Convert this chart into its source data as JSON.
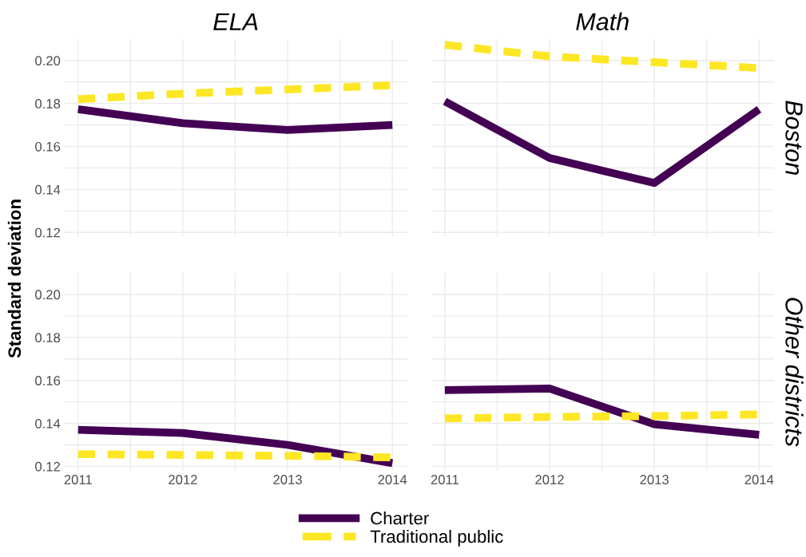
{
  "chart_data": [
    {
      "type": "line",
      "title": "ELA",
      "ylabel": "Standard deviation",
      "x": [
        2011,
        2012,
        2013,
        2014
      ],
      "xlim": [
        2010.87,
        2014.14
      ],
      "ylim": [
        0.118,
        0.21
      ],
      "xticks": [
        2011,
        {
          "value": 2011.5,
          "label": null
        },
        2012,
        {
          "value": 2012.5,
          "label": null
        },
        2013,
        {
          "value": 2013.5,
          "label": null
        },
        2014
      ],
      "yticks": [
        0.12,
        {
          "value": 0.13,
          "label": null
        },
        0.14,
        {
          "value": 0.15,
          "label": null
        },
        0.16,
        {
          "value": 0.17,
          "label": null
        },
        0.18,
        {
          "value": 0.19,
          "label": null
        },
        {
          "value": 0.2,
          "label": "0.20"
        }
      ],
      "grid": true,
      "tick_labels": "y",
      "legend": "bottom",
      "marker": "none",
      "series": [
        {
          "name": "Charter",
          "color": "#440154",
          "line_style": "solid",
          "values": [
            0.1773,
            0.1708,
            0.1677,
            0.17
          ]
        },
        {
          "name": "Traditional public",
          "color": "#fde725",
          "line_style": "dashed",
          "values": [
            0.182,
            0.1846,
            0.1865,
            0.1885
          ]
        }
      ]
    },
    {
      "type": "line",
      "title": "Math",
      "y2label": "Boston",
      "x": [
        2011,
        2012,
        2013,
        2014
      ],
      "xlim": [
        2010.87,
        2014.14
      ],
      "ylim": [
        0.118,
        0.21
      ],
      "xticks": [
        2011,
        {
          "value": 2011.5,
          "label": null
        },
        2012,
        {
          "value": 2012.5,
          "label": null
        },
        2013,
        {
          "value": 2013.5,
          "label": null
        },
        2014
      ],
      "yticks": [
        0.12,
        {
          "value": 0.13,
          "label": null
        },
        0.14,
        {
          "value": 0.15,
          "label": null
        },
        0.16,
        {
          "value": 0.17,
          "label": null
        },
        0.18,
        {
          "value": 0.19,
          "label": null
        },
        0.2
      ],
      "grid": true,
      "tick_labels": false,
      "marker": "none",
      "series": [
        {
          "color": "#440154",
          "line_style": "solid",
          "values": [
            0.181,
            0.1546,
            0.143,
            0.1773
          ]
        },
        {
          "color": "#fde725",
          "line_style": "dashed",
          "values": [
            0.2073,
            0.2019,
            0.1992,
            0.1965
          ]
        }
      ]
    },
    {
      "type": "line",
      "x": [
        2011,
        2012,
        2013,
        2014
      ],
      "xlim": [
        2010.87,
        2014.14
      ],
      "ylim": [
        0.118,
        0.21
      ],
      "xticks": [
        2011,
        {
          "value": 2011.5,
          "label": null
        },
        2012,
        {
          "value": 2012.5,
          "label": null
        },
        2013,
        {
          "value": 2013.5,
          "label": null
        },
        2014
      ],
      "yticks": [
        0.12,
        {
          "value": 0.13,
          "label": null
        },
        0.14,
        {
          "value": 0.15,
          "label": null
        },
        0.16,
        {
          "value": 0.17,
          "label": null
        },
        0.18,
        {
          "value": 0.19,
          "label": null
        },
        {
          "value": 0.2,
          "label": "0.20"
        }
      ],
      "grid": true,
      "marker": "none",
      "series": [
        {
          "color": "#440154",
          "line_style": "solid",
          "values": [
            0.137,
            0.1355,
            0.13,
            0.1215
          ]
        },
        {
          "color": "#fde725",
          "line_style": "dashed",
          "values": [
            0.1257,
            0.1253,
            0.1249,
            0.1242
          ]
        }
      ]
    },
    {
      "type": "line",
      "y2label": "Other districts",
      "x": [
        2011,
        2012,
        2013,
        2014
      ],
      "xlim": [
        2010.87,
        2014.14
      ],
      "ylim": [
        0.118,
        0.21
      ],
      "xticks": [
        2011,
        {
          "value": 2011.5,
          "label": null
        },
        2012,
        {
          "value": 2012.5,
          "label": null
        },
        2013,
        {
          "value": 2013.5,
          "label": null
        },
        2014
      ],
      "yticks": [
        0.12,
        {
          "value": 0.13,
          "label": null
        },
        0.14,
        {
          "value": 0.15,
          "label": null
        },
        0.16,
        {
          "value": 0.17,
          "label": null
        },
        0.18,
        {
          "value": 0.19,
          "label": null
        },
        0.2
      ],
      "grid": true,
      "tick_labels": "x",
      "marker": "none",
      "series": [
        {
          "color": "#440154",
          "line_style": "solid",
          "values": [
            0.1555,
            0.1562,
            0.1396,
            0.1347
          ]
        },
        {
          "color": "#fde725",
          "line_style": "dashed",
          "values": [
            0.1423,
            0.143,
            0.1434,
            0.1442
          ]
        }
      ]
    }
  ]
}
